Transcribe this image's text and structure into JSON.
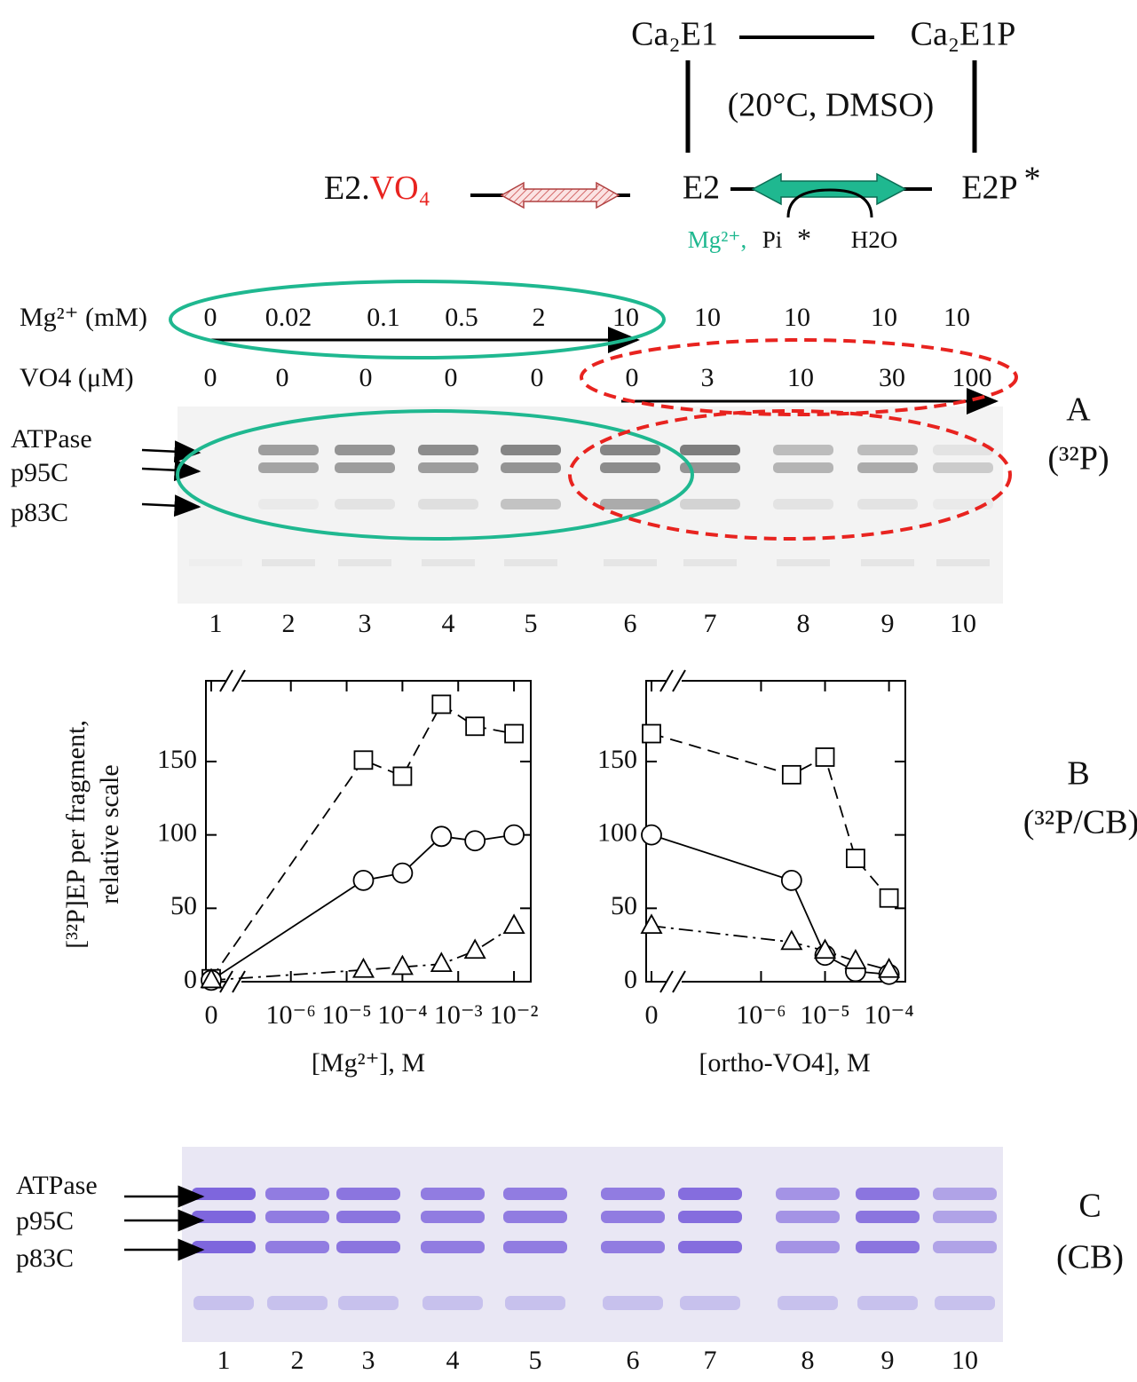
{
  "scheme": {
    "ca2e1": "Ca₂E1",
    "ca2e1p": "Ca₂E1P",
    "condition": "(20°C, DMSO)",
    "e2vo4_prefix": "E2.",
    "e2vo4_red": "VO₄",
    "e2": "E2",
    "e2p": "E2P",
    "e2p_star": "*",
    "mg": "Mg²⁺,",
    "pi": "Pi",
    "pi_star": "*",
    "h2o": "H2O"
  },
  "gel_a": {
    "mg_label": "Mg²⁺ (mM)",
    "mg": [
      0,
      0.02,
      0.1,
      0.5,
      2,
      10,
      10,
      10,
      10,
      10
    ],
    "vo4_label": "VO4 (μM)",
    "vo4": [
      0,
      0,
      0,
      0,
      0,
      0,
      3,
      10,
      30,
      100
    ],
    "bands": [
      "ATPase",
      "p95C",
      "p83C"
    ],
    "lanes": [
      1,
      2,
      3,
      4,
      5,
      6,
      7,
      8,
      9,
      10
    ],
    "panel": "A",
    "panel_note": "(³²P)"
  },
  "panel_b": {
    "panel": "B",
    "panel_note": "(³²P/CB)",
    "y_label": [
      "[³²P]EP per fragment,",
      "relative scale"
    ]
  },
  "chart_data": [
    {
      "type": "line",
      "x_label": "[Mg²⁺], M",
      "x_scale": "log",
      "x": [
        0,
        2e-05,
        0.0001,
        0.0005,
        0.002,
        0.01
      ],
      "xlim": [
        3e-08,
        0.02
      ],
      "xticks": [
        0,
        {
          "value": 1e-06,
          "label": "10⁻⁶"
        },
        {
          "value": 1e-05,
          "label": "10⁻⁵"
        },
        {
          "value": 0.0001,
          "label": "10⁻⁴"
        },
        {
          "value": 0.001,
          "label": "10⁻³"
        },
        {
          "value": 0.01,
          "label": "10⁻²"
        }
      ],
      "ylim": [
        0,
        205
      ],
      "yticks": [
        0,
        50,
        100,
        150
      ],
      "grid": false,
      "series": [
        {
          "marker": "square",
          "dash": "dashed",
          "color": "#000000",
          "values": [
            2,
            151,
            140,
            189,
            174,
            169
          ]
        },
        {
          "marker": "circle",
          "dash": "solid",
          "color": "#000000",
          "values": [
            1,
            69,
            74,
            99,
            96,
            100
          ]
        },
        {
          "marker": "triangle",
          "dash": "dashdot",
          "color": "#000000",
          "values": [
            1,
            8,
            10,
            12,
            21,
            38
          ]
        }
      ]
    },
    {
      "type": "line",
      "x_label": "[ortho-VO4], M",
      "x_scale": "log",
      "x": [
        0,
        3e-06,
        1e-05,
        3e-05,
        0.0001
      ],
      "xlim": [
        1.6e-08,
        0.00018
      ],
      "xticks": [
        0,
        {
          "value": 1e-06,
          "label": "10⁻⁶"
        },
        {
          "value": 1e-05,
          "label": "10⁻⁵"
        },
        {
          "value": 0.0001,
          "label": "10⁻⁴"
        }
      ],
      "ylim": [
        0,
        205
      ],
      "yticks": [
        0,
        50,
        100,
        150
      ],
      "grid": false,
      "series": [
        {
          "marker": "square",
          "dash": "dashed",
          "color": "#000000",
          "values": [
            169,
            141,
            153,
            84,
            57
          ]
        },
        {
          "marker": "circle",
          "dash": "solid",
          "color": "#000000",
          "values": [
            100,
            69,
            18,
            7,
            5
          ]
        },
        {
          "marker": "triangle",
          "dash": "dashdot",
          "color": "#000000",
          "values": [
            38,
            27,
            21,
            14,
            8
          ]
        }
      ]
    }
  ],
  "gel_c": {
    "bands": [
      "ATPase",
      "p95C",
      "p83C"
    ],
    "lanes": [
      1,
      2,
      3,
      4,
      5,
      6,
      7,
      8,
      9,
      10
    ],
    "panel": "C",
    "panel_note": "(CB)"
  }
}
